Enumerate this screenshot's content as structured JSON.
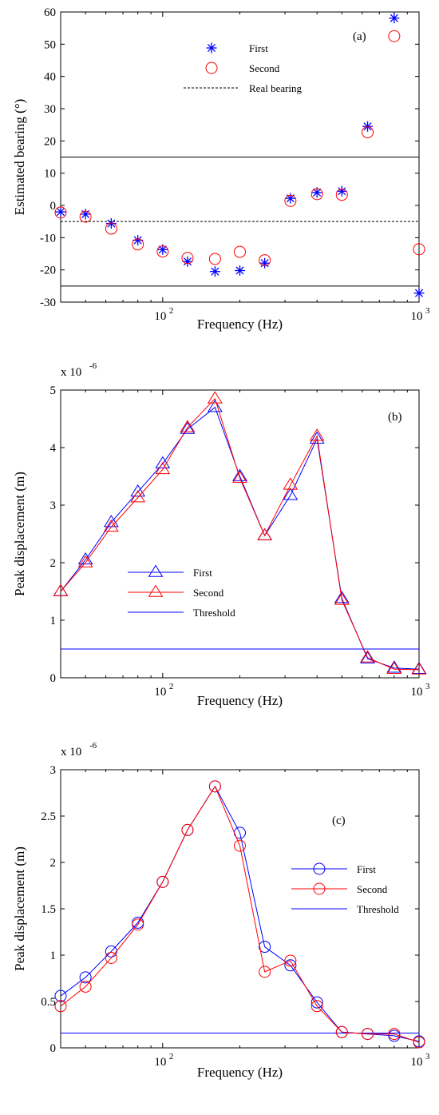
{
  "chart_data": [
    {
      "type": "scatter",
      "panel_label": "(a)",
      "xlabel": "Frequency (Hz)",
      "ylabel": "Estimated bearing (°)",
      "xscale": "log",
      "xlim": [
        40,
        1000
      ],
      "ylim": [
        -30,
        60
      ],
      "yticks": [
        -30,
        -20,
        -10,
        0,
        10,
        20,
        30,
        40,
        50,
        60
      ],
      "xticks": [
        {
          "value": 100,
          "label": "10",
          "exp": "2"
        },
        {
          "value": 1000,
          "label": "10",
          "exp": "3"
        }
      ],
      "legend_position": "top-center",
      "x": [
        40,
        50,
        63,
        80,
        100,
        125,
        160,
        200,
        250,
        315,
        400,
        500,
        630,
        800,
        1000
      ],
      "series": [
        {
          "name": "First",
          "marker": "star",
          "color": "#0000ff",
          "values": [
            -2,
            -2.7,
            -5.6,
            -10.8,
            -13.7,
            -17.4,
            -20.5,
            -20.2,
            -17.9,
            2.2,
            4.0,
            4.4,
            24.5,
            58.1,
            -27.2
          ]
        },
        {
          "name": "Second",
          "marker": "circle",
          "color": "#ff0000",
          "values": [
            -2.2,
            -3.5,
            -7.2,
            -12.1,
            -14.3,
            -16.3,
            -16.6,
            -14.4,
            -17.0,
            1.4,
            3.5,
            3.3,
            22.7,
            52.5,
            -13.6
          ]
        }
      ],
      "lines": [
        {
          "name": "Real bearing",
          "y": -5,
          "style": "dashed",
          "color": "#000000"
        },
        {
          "y": 15,
          "style": "solid",
          "color": "#000000"
        },
        {
          "y": -25,
          "style": "solid",
          "color": "#000000"
        }
      ]
    },
    {
      "type": "line",
      "panel_label": "(b)",
      "xlabel": "Frequency (Hz)",
      "ylabel": "Peak displacement (m)",
      "yscale_factor": {
        "label": "x 10",
        "exp": "-6"
      },
      "xscale": "log",
      "xlim": [
        40,
        1000
      ],
      "ylim": [
        0,
        5
      ],
      "yticks": [
        0,
        1,
        2,
        3,
        4,
        5
      ],
      "xticks": [
        {
          "value": 100,
          "label": "10",
          "exp": "2"
        },
        {
          "value": 1000,
          "label": "10",
          "exp": "3"
        }
      ],
      "legend_position": "center-left",
      "x": [
        40,
        50,
        63,
        80,
        100,
        125,
        160,
        200,
        250,
        315,
        400,
        500,
        630,
        800,
        1000
      ],
      "series": [
        {
          "name": "First",
          "marker": "triangle",
          "color": "#0000ff",
          "values": [
            1.5,
            2.05,
            2.7,
            3.23,
            3.72,
            4.32,
            4.7,
            3.5,
            2.47,
            3.17,
            4.15,
            1.38,
            0.33,
            0.17,
            0.15
          ]
        },
        {
          "name": "Second",
          "marker": "triangle",
          "color": "#ff0000",
          "values": [
            1.5,
            2.0,
            2.62,
            3.13,
            3.62,
            4.35,
            4.85,
            3.47,
            2.47,
            3.35,
            4.2,
            1.35,
            0.35,
            0.15,
            0.14
          ]
        }
      ],
      "lines": [
        {
          "name": "Threshold",
          "y": 0.5,
          "style": "solid",
          "color": "#0000ff"
        }
      ]
    },
    {
      "type": "line",
      "panel_label": "(c)",
      "xlabel": "Frequency (Hz)",
      "ylabel": "Peak displacement (m)",
      "yscale_factor": {
        "label": "x 10",
        "exp": "-6"
      },
      "xscale": "log",
      "xlim": [
        40,
        1000
      ],
      "ylim": [
        0,
        3
      ],
      "yticks": [
        0,
        0.5,
        1,
        1.5,
        2,
        2.5,
        3
      ],
      "xticks": [
        {
          "value": 100,
          "label": "10",
          "exp": "2"
        },
        {
          "value": 1000,
          "label": "10",
          "exp": "3"
        }
      ],
      "legend_position": "center-right",
      "x": [
        40,
        50,
        63,
        80,
        100,
        125,
        160,
        200,
        250,
        315,
        400,
        500,
        630,
        800,
        1000
      ],
      "series": [
        {
          "name": "First",
          "marker": "circle",
          "color": "#0000ff",
          "values": [
            0.56,
            0.76,
            1.04,
            1.35,
            1.79,
            2.35,
            2.82,
            2.32,
            1.09,
            0.89,
            0.49,
            0.17,
            0.15,
            0.13,
            0.07
          ]
        },
        {
          "name": "Second",
          "marker": "circle",
          "color": "#ff0000",
          "values": [
            0.45,
            0.66,
            0.97,
            1.33,
            1.79,
            2.35,
            2.82,
            2.18,
            0.82,
            0.94,
            0.45,
            0.17,
            0.15,
            0.15,
            0.06
          ]
        }
      ],
      "lines": [
        {
          "name": "Threshold",
          "y": 0.16,
          "style": "solid",
          "color": "#0000ff"
        }
      ]
    }
  ]
}
